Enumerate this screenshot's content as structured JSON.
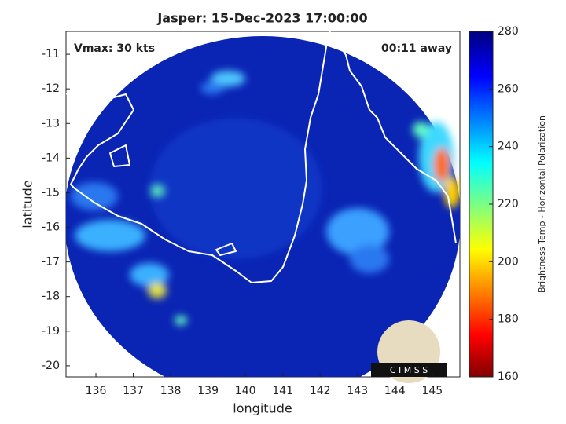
{
  "chart_data": {
    "type": "image",
    "title": "Jasper: 15-Dec-2023 17:00:00",
    "xlabel": "longitude",
    "ylabel": "latitude",
    "xlim": [
      135.2,
      145.74
    ],
    "ylim": [
      -20.32,
      -10.34
    ],
    "xticks": [
      136,
      137,
      138,
      139,
      140,
      141,
      142,
      143,
      144,
      145
    ],
    "yticks": [
      -20,
      -19,
      -18,
      -17,
      -16,
      -15,
      -14,
      -13,
      -12,
      -11
    ],
    "annotations": [
      "Vmax: 30 kts",
      "00:11 away"
    ],
    "logo": "C I M S S",
    "colorbar": {
      "label": "Brightness Temp - Horizontal Polarization",
      "lim": [
        160,
        280
      ],
      "ticks": [
        160,
        180,
        200,
        220,
        240,
        260,
        280
      ]
    }
  }
}
